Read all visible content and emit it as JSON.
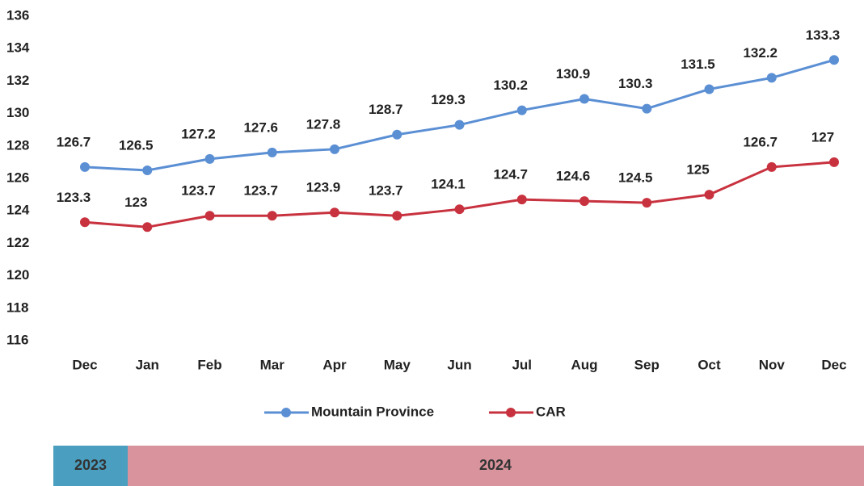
{
  "chart_data": {
    "type": "line",
    "categories": [
      "Dec",
      "Jan",
      "Feb",
      "Mar",
      "Apr",
      "May",
      "Jun",
      "Jul",
      "Aug",
      "Sep",
      "Oct",
      "Nov",
      "Dec"
    ],
    "series": [
      {
        "name": "Mountain Province",
        "color": "#5b8fd4",
        "values": [
          126.7,
          126.5,
          127.2,
          127.6,
          127.8,
          128.7,
          129.3,
          130.2,
          130.9,
          130.3,
          131.5,
          132.2,
          133.3
        ]
      },
      {
        "name": "CAR",
        "color": "#c8323f",
        "values": [
          123.3,
          123,
          123.7,
          123.7,
          123.9,
          123.7,
          124.1,
          124.7,
          124.6,
          124.5,
          125,
          126.7,
          127
        ]
      }
    ],
    "ylim": [
      116,
      136
    ],
    "yticks": [
      116,
      118,
      120,
      122,
      124,
      126,
      128,
      130,
      132,
      134,
      136
    ],
    "grid": false,
    "legend": "bottom",
    "periods": [
      {
        "label": "2023",
        "color": "#4a9fc0"
      },
      {
        "label": "2024",
        "color": "#d9939c"
      }
    ]
  }
}
